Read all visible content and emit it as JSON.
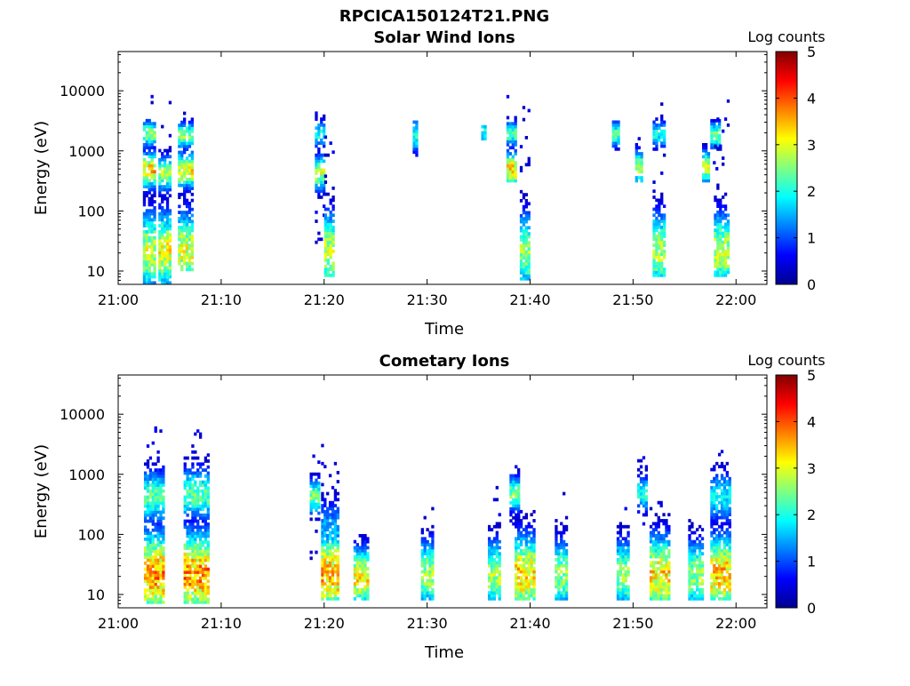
{
  "figure": {
    "title": "RPCICA150124T21.PNG"
  },
  "colors": {
    "colormap": "jet",
    "axis": "#000000",
    "background": "#ffffff"
  },
  "chart_data": [
    {
      "type": "heatmap",
      "title": "Solar Wind Ions",
      "xlabel": "Time",
      "ylabel": "Energy (eV)",
      "colorbar_label": "Log counts",
      "colorbar_ticks": [
        "0",
        "1",
        "2",
        "3",
        "4",
        "5"
      ],
      "colorbar_range": [
        0,
        5
      ],
      "xlim": [
        "21:00",
        "22:03"
      ],
      "x_ticks": [
        "21:00",
        "21:10",
        "21:20",
        "21:30",
        "21:40",
        "21:50",
        "22:00"
      ],
      "ylim": [
        6,
        45000
      ],
      "yscale": "log",
      "y_ticks": [
        {
          "value": 10,
          "label": "10"
        },
        {
          "value": 100,
          "label": "100"
        },
        {
          "value": 1000,
          "label": "1000"
        },
        {
          "value": 10000,
          "label": "10000"
        }
      ],
      "bursts": [
        {
          "time": "21:03",
          "width_min": 1.2,
          "emin": 6,
          "emax": 9000,
          "bands": [
            {
              "e": 20,
              "h": 2.8,
              "s": 0.45
            },
            {
              "e": 450,
              "h": 3.3,
              "s": 0.2
            },
            {
              "e": 1800,
              "h": 2.5,
              "s": 0.15
            }
          ]
        },
        {
          "time": "21:04.5",
          "width_min": 1.2,
          "emin": 6,
          "emax": 9000,
          "bands": [
            {
              "e": 20,
              "h": 3.0,
              "s": 0.45
            },
            {
              "e": 400,
              "h": 2.6,
              "s": 0.2
            }
          ]
        },
        {
          "time": "21:06.5",
          "width_min": 1.4,
          "emin": 10,
          "emax": 9000,
          "bands": [
            {
              "e": 20,
              "h": 2.9,
              "s": 0.45
            },
            {
              "e": 450,
              "h": 3.1,
              "s": 0.2
            },
            {
              "e": 1700,
              "h": 2.6,
              "s": 0.15
            }
          ]
        },
        {
          "time": "21:19.5",
          "width_min": 0.8,
          "emin": 8,
          "emax": 5000,
          "bands": [
            {
              "e": 400,
              "h": 2.8,
              "s": 0.2
            },
            {
              "e": 1800,
              "h": 2.0,
              "s": 0.15
            }
          ]
        },
        {
          "time": "21:20.5",
          "width_min": 1.0,
          "emin": 8,
          "emax": 3000,
          "bands": [
            {
              "e": 20,
              "h": 2.8,
              "s": 0.45
            }
          ]
        },
        {
          "time": "21:28.8",
          "width_min": 0.4,
          "emin": 800,
          "emax": 3000,
          "bands": [
            {
              "e": 1700,
              "h": 2.0,
              "s": 0.2
            }
          ]
        },
        {
          "time": "21:35.5",
          "width_min": 0.5,
          "emin": 1500,
          "emax": 2500,
          "bands": [
            {
              "e": 2000,
              "h": 2.0,
              "s": 0.2
            }
          ]
        },
        {
          "time": "21:38.2",
          "width_min": 1.0,
          "emin": 300,
          "emax": 8000,
          "bands": [
            {
              "e": 450,
              "h": 3.3,
              "s": 0.2
            },
            {
              "e": 1800,
              "h": 2.2,
              "s": 0.15
            }
          ]
        },
        {
          "time": "21:39.5",
          "width_min": 1.0,
          "emin": 7,
          "emax": 5000,
          "bands": [
            {
              "e": 20,
              "h": 2.6,
              "s": 0.45
            }
          ]
        },
        {
          "time": "21:48.3",
          "width_min": 0.7,
          "emin": 900,
          "emax": 3000,
          "bands": [
            {
              "e": 1800,
              "h": 2.3,
              "s": 0.15
            }
          ]
        },
        {
          "time": "21:50.5",
          "width_min": 0.6,
          "emin": 300,
          "emax": 2000,
          "bands": [
            {
              "e": 500,
              "h": 2.6,
              "s": 0.2
            }
          ]
        },
        {
          "time": "21:52.5",
          "width_min": 1.2,
          "emin": 8,
          "emax": 7000,
          "bands": [
            {
              "e": 20,
              "h": 2.7,
              "s": 0.45
            },
            {
              "e": 1800,
              "h": 2.0,
              "s": 0.15
            }
          ]
        },
        {
          "time": "21:57",
          "width_min": 0.6,
          "emin": 300,
          "emax": 1500,
          "bands": [
            {
              "e": 500,
              "h": 2.7,
              "s": 0.2
            }
          ]
        },
        {
          "time": "21:58",
          "width_min": 1.0,
          "emin": 300,
          "emax": 3000,
          "bands": [
            {
              "e": 1700,
              "h": 2.5,
              "s": 0.15
            }
          ]
        },
        {
          "time": "21:58.5",
          "width_min": 1.3,
          "emin": 8,
          "emax": 9000,
          "bands": [
            {
              "e": 20,
              "h": 2.8,
              "s": 0.45
            }
          ]
        }
      ]
    },
    {
      "type": "heatmap",
      "title": "Cometary Ions",
      "xlabel": "Time",
      "ylabel": "Energy (eV)",
      "colorbar_label": "Log counts",
      "colorbar_ticks": [
        "0",
        "1",
        "2",
        "3",
        "4",
        "5"
      ],
      "colorbar_range": [
        0,
        5
      ],
      "xlim": [
        "21:00",
        "22:03"
      ],
      "x_ticks": [
        "21:00",
        "21:10",
        "21:20",
        "21:30",
        "21:40",
        "21:50",
        "22:00"
      ],
      "ylim": [
        6,
        45000
      ],
      "yscale": "log",
      "y_ticks": [
        {
          "value": 10,
          "label": "10"
        },
        {
          "value": 100,
          "label": "100"
        },
        {
          "value": 1000,
          "label": "1000"
        },
        {
          "value": 10000,
          "label": "10000"
        }
      ],
      "bursts": [
        {
          "time": "21:03.5",
          "width_min": 2.0,
          "emin": 7,
          "emax": 6000,
          "bands": [
            {
              "e": 20,
              "h": 3.6,
              "s": 0.5
            },
            {
              "e": 400,
              "h": 2.3,
              "s": 0.3
            }
          ]
        },
        {
          "time": "21:07.5",
          "width_min": 2.3,
          "emin": 7,
          "emax": 5000,
          "bands": [
            {
              "e": 20,
              "h": 3.6,
              "s": 0.5
            },
            {
              "e": 450,
              "h": 2.3,
              "s": 0.3
            }
          ]
        },
        {
          "time": "21:19",
          "width_min": 0.8,
          "emin": 30,
          "emax": 2000,
          "bands": [
            {
              "e": 400,
              "h": 2.5,
              "s": 0.2
            }
          ]
        },
        {
          "time": "21:20.5",
          "width_min": 1.6,
          "emin": 8,
          "emax": 4000,
          "bands": [
            {
              "e": 20,
              "h": 3.4,
              "s": 0.5
            },
            {
              "e": 100,
              "h": 1.5,
              "s": 0.4
            }
          ]
        },
        {
          "time": "21:23.5",
          "width_min": 1.3,
          "emin": 8,
          "emax": 100,
          "bands": [
            {
              "e": 18,
              "h": 3.1,
              "s": 0.35
            }
          ]
        },
        {
          "time": "21:30",
          "width_min": 1.2,
          "emin": 8,
          "emax": 300,
          "bands": [
            {
              "e": 20,
              "h": 2.6,
              "s": 0.4
            }
          ]
        },
        {
          "time": "21:36.5",
          "width_min": 1.2,
          "emin": 8,
          "emax": 800,
          "bands": [
            {
              "e": 20,
              "h": 2.7,
              "s": 0.4
            }
          ]
        },
        {
          "time": "21:38.5",
          "width_min": 1.0,
          "emin": 100,
          "emax": 2500,
          "bands": [
            {
              "e": 450,
              "h": 2.4,
              "s": 0.2
            }
          ]
        },
        {
          "time": "21:39.5",
          "width_min": 2.0,
          "emin": 8,
          "emax": 300,
          "bands": [
            {
              "e": 20,
              "h": 3.3,
              "s": 0.45
            }
          ]
        },
        {
          "time": "21:43",
          "width_min": 1.2,
          "emin": 8,
          "emax": 500,
          "bands": [
            {
              "e": 20,
              "h": 2.6,
              "s": 0.4
            }
          ]
        },
        {
          "time": "21:49",
          "width_min": 1.2,
          "emin": 8,
          "emax": 300,
          "bands": [
            {
              "e": 20,
              "h": 2.6,
              "s": 0.4
            }
          ]
        },
        {
          "time": "21:50.8",
          "width_min": 0.8,
          "emin": 100,
          "emax": 2000,
          "bands": [
            {
              "e": 450,
              "h": 2.0,
              "s": 0.2
            }
          ]
        },
        {
          "time": "21:52.5",
          "width_min": 1.8,
          "emin": 8,
          "emax": 400,
          "bands": [
            {
              "e": 20,
              "h": 3.2,
              "s": 0.45
            }
          ]
        },
        {
          "time": "21:56",
          "width_min": 1.3,
          "emin": 8,
          "emax": 200,
          "bands": [
            {
              "e": 20,
              "h": 2.6,
              "s": 0.4
            }
          ]
        },
        {
          "time": "21:58.5",
          "width_min": 2.0,
          "emin": 8,
          "emax": 2500,
          "bands": [
            {
              "e": 20,
              "h": 3.4,
              "s": 0.45
            },
            {
              "e": 400,
              "h": 1.8,
              "s": 0.3
            }
          ]
        }
      ]
    }
  ]
}
